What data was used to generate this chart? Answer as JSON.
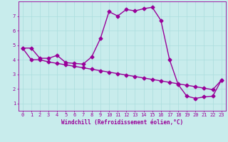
{
  "title": "",
  "xlabel": "Windchill (Refroidissement éolien,°C)",
  "bg_color": "#c8ecec",
  "line_color": "#990099",
  "grid_color": "#aadddd",
  "xlim": [
    -0.5,
    23.5
  ],
  "ylim": [
    0.5,
    8.0
  ],
  "xticks": [
    0,
    1,
    2,
    3,
    4,
    5,
    6,
    7,
    8,
    9,
    10,
    11,
    12,
    13,
    14,
    15,
    16,
    17,
    18,
    19,
    20,
    21,
    22,
    23
  ],
  "yticks": [
    1,
    2,
    3,
    4,
    5,
    6,
    7
  ],
  "curve1_x": [
    0,
    1,
    2,
    3,
    4,
    5,
    6,
    7,
    8,
    9,
    10,
    11,
    12,
    13,
    14,
    15,
    16,
    17,
    18,
    19,
    20,
    21,
    22,
    23
  ],
  "curve1_y": [
    4.8,
    4.8,
    4.1,
    4.1,
    4.3,
    3.8,
    3.75,
    3.7,
    4.2,
    5.45,
    7.3,
    7.0,
    7.45,
    7.35,
    7.5,
    7.6,
    6.7,
    4.0,
    2.3,
    1.5,
    1.35,
    1.45,
    1.5,
    2.6
  ],
  "curve2_x": [
    0,
    1,
    2,
    3,
    4,
    5,
    6,
    7,
    8,
    9,
    10,
    11,
    12,
    13,
    14,
    15,
    16,
    17,
    18,
    19,
    20,
    21,
    22,
    23
  ],
  "curve2_y": [
    4.8,
    4.0,
    4.0,
    3.85,
    3.75,
    3.65,
    3.55,
    3.45,
    3.35,
    3.25,
    3.15,
    3.05,
    2.95,
    2.85,
    2.75,
    2.65,
    2.55,
    2.45,
    2.35,
    2.25,
    2.15,
    2.05,
    1.95,
    2.6
  ],
  "marker": "D",
  "markersize": 2.5,
  "linewidth": 1.0,
  "label_fontsize": 5.5,
  "tick_fontsize": 5.0
}
